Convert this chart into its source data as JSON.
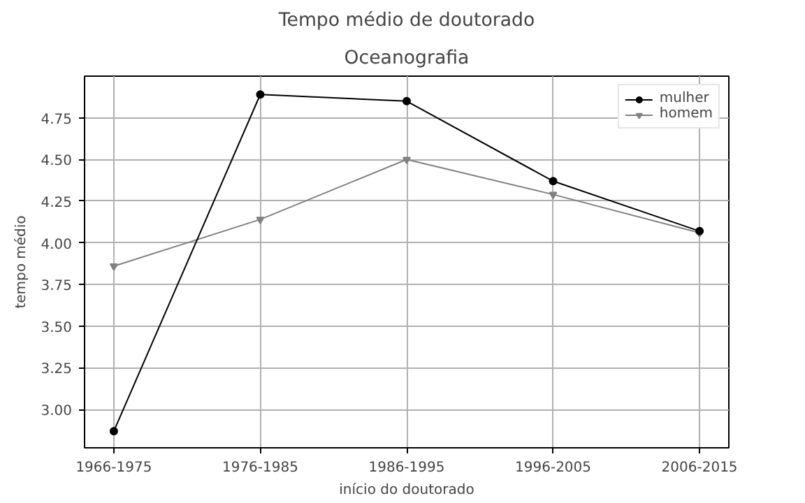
{
  "chart_data": {
    "type": "line",
    "title": "Tempo médio de doutorado",
    "subtitle": "Oceanografia",
    "xlabel": "início do doutorado",
    "ylabel": "tempo médio",
    "categories": [
      "1966-1975",
      "1976-1985",
      "1986-1995",
      "1996-2005",
      "2006-2015"
    ],
    "series": [
      {
        "name": "mulher",
        "color": "#000000",
        "marker": "circle",
        "values": [
          2.87,
          4.89,
          4.85,
          4.37,
          4.07
        ]
      },
      {
        "name": "homem",
        "color": "#808080",
        "marker": "triangle",
        "values": [
          3.86,
          4.14,
          4.5,
          4.29,
          4.06
        ]
      }
    ],
    "ylim": [
      2.77,
      5.0
    ],
    "yticks": [
      {
        "value": 3.0,
        "label": "3.00"
      },
      {
        "value": 3.25,
        "label": "3.25"
      },
      {
        "value": 3.5,
        "label": "3.50"
      },
      {
        "value": 3.75,
        "label": "3.75"
      },
      {
        "value": 4.0,
        "label": "4.00"
      },
      {
        "value": 4.25,
        "label": "4.25"
      },
      {
        "value": 4.5,
        "label": "4.50"
      },
      {
        "value": 4.75,
        "label": "4.75"
      }
    ],
    "grid": true,
    "legend": "top right",
    "line_style": "solid"
  }
}
